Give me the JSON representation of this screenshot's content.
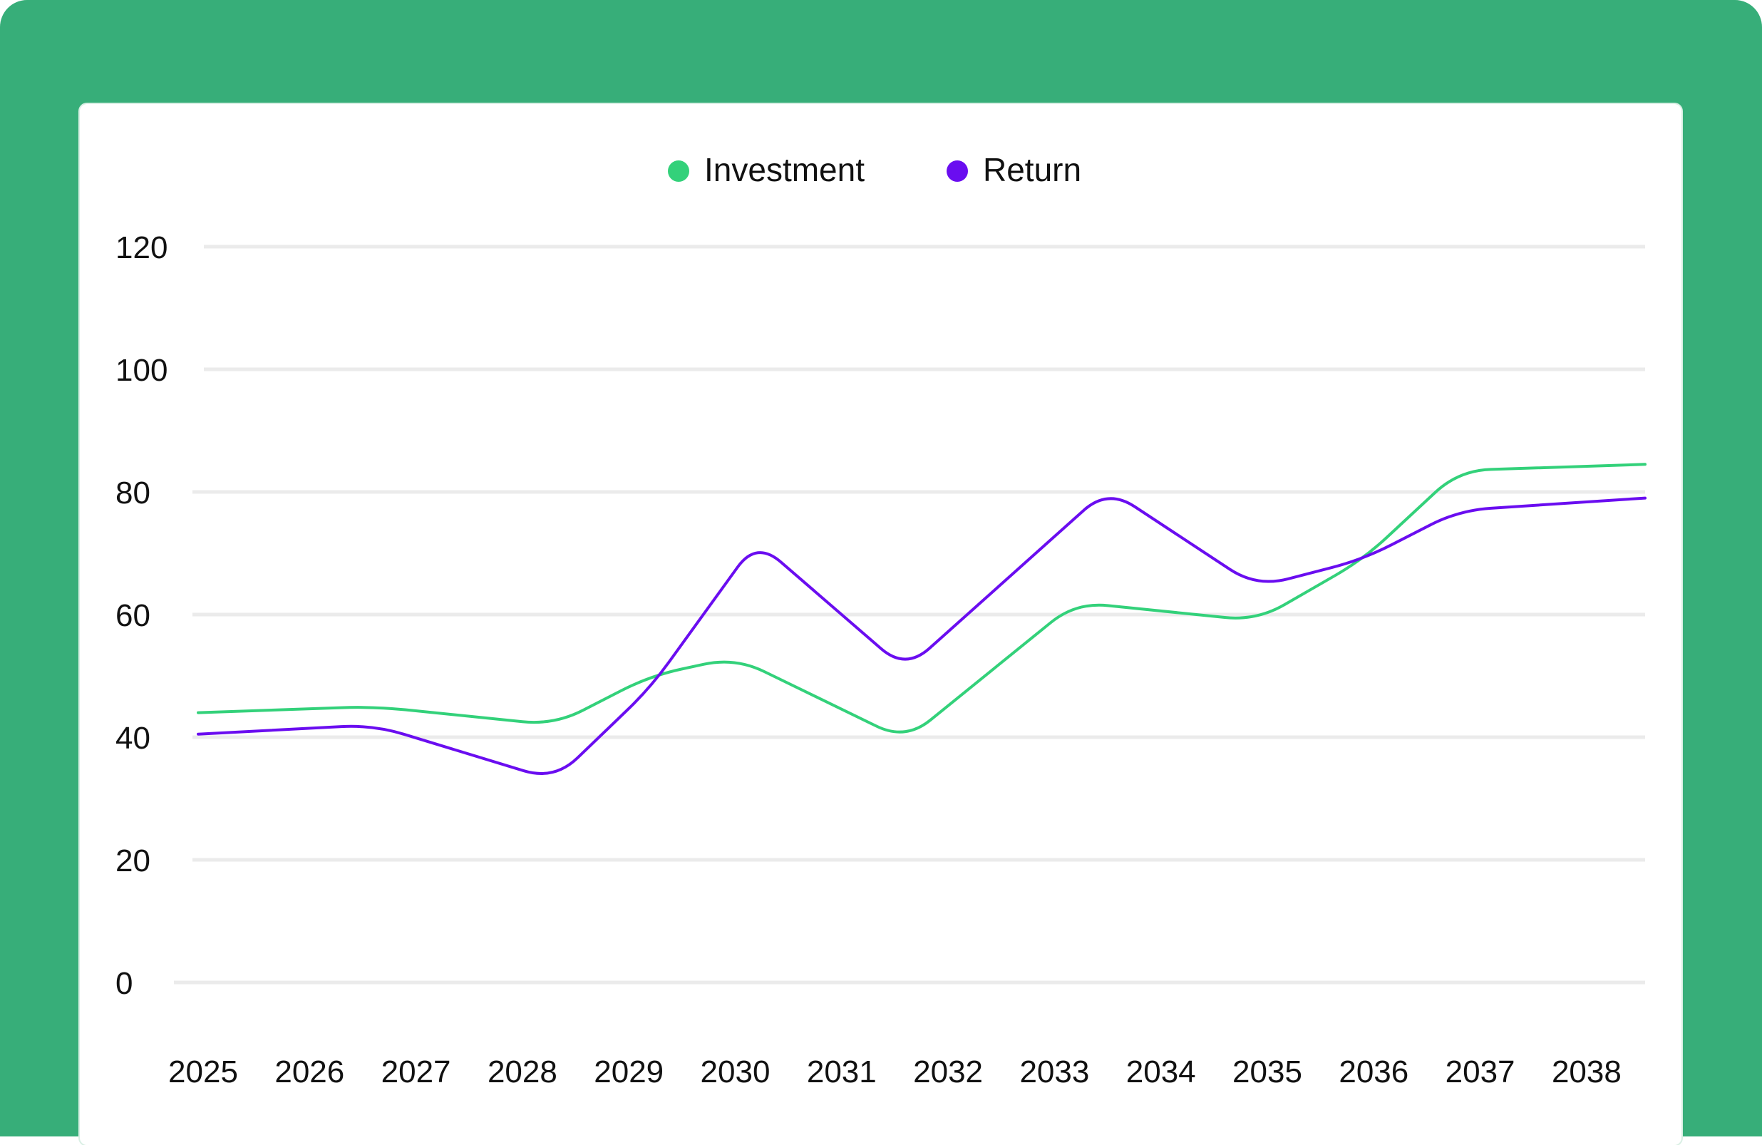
{
  "colors": {
    "frame": "#37ae79",
    "investment": "#33d17a",
    "return": "#6a0df0",
    "grid": "#ebebeb",
    "text": "#111111"
  },
  "chart_data": {
    "type": "line",
    "legend_position": "top-center",
    "grid": true,
    "ylim": [
      0,
      120
    ],
    "y_ticks": [
      "0",
      "20",
      "40",
      "60",
      "80",
      "100",
      "120"
    ],
    "x_ticks": [
      "2025",
      "2026",
      "2027",
      "2028",
      "2029",
      "2030",
      "2031",
      "2032",
      "2033",
      "2034",
      "2035",
      "2036",
      "2037",
      "2038"
    ],
    "series": [
      {
        "name": "Investment",
        "color": "#33d17a",
        "points": [
          [
            2025.0,
            44
          ],
          [
            2026.6,
            45
          ],
          [
            2028.3,
            42
          ],
          [
            2029.2,
            50
          ],
          [
            2030.0,
            53
          ],
          [
            2031.6,
            39.5
          ],
          [
            2033.2,
            62
          ],
          [
            2034.9,
            59
          ],
          [
            2035.9,
            69
          ],
          [
            2036.8,
            83.5
          ],
          [
            2038.6,
            84.5
          ]
        ]
      },
      {
        "name": "Return",
        "color": "#6a0df0",
        "points": [
          [
            2025.0,
            40.5
          ],
          [
            2026.6,
            42
          ],
          [
            2028.3,
            33
          ],
          [
            2029.2,
            48
          ],
          [
            2030.2,
            72
          ],
          [
            2031.6,
            51
          ],
          [
            2033.5,
            80.5
          ],
          [
            2034.9,
            64.5
          ],
          [
            2035.9,
            69
          ],
          [
            2036.8,
            77
          ],
          [
            2038.6,
            79
          ]
        ]
      }
    ]
  }
}
